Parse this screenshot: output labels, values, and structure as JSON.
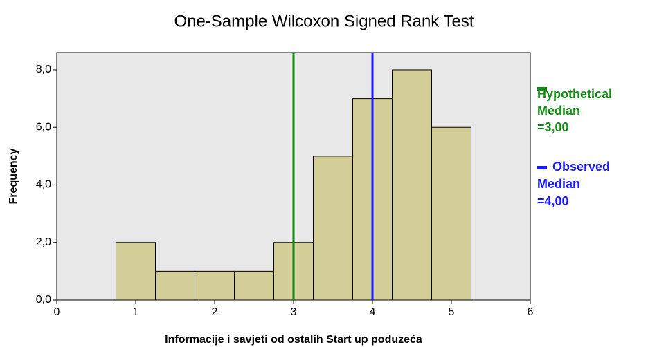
{
  "chart_data": {
    "type": "histogram",
    "title": "One-Sample Wilcoxon Signed Rank Test",
    "xlabel": "Informacije i savjeti od ostalih Start up poduzeća",
    "ylabel": "Frequency",
    "bins": [
      0.75,
      1.25,
      1.75,
      2.25,
      2.75,
      3.25,
      3.75,
      4.25,
      4.75,
      5.25
    ],
    "counts": [
      2,
      1,
      1,
      1,
      2,
      5,
      7,
      8,
      6
    ],
    "color": "#d3ce97",
    "xlim": [
      0,
      6
    ],
    "xticks": [
      0,
      1,
      2,
      3,
      4,
      5,
      6
    ],
    "ylim": [
      0,
      8.6
    ],
    "yticks": [
      {
        "value": 0,
        "label": "0,0"
      },
      {
        "value": 2,
        "label": "2,0"
      },
      {
        "value": 4,
        "label": "4,0"
      },
      {
        "value": 6,
        "label": "6,0"
      },
      {
        "value": 8,
        "label": "8,0"
      }
    ],
    "reference_lines": [
      {
        "value": 3,
        "color": "#138a13",
        "label": [
          "Hypothetical",
          "Median",
          "=3,00"
        ]
      },
      {
        "value": 4,
        "color": "#1a1aff",
        "label": [
          "Observed",
          "Median",
          "=4,00"
        ]
      }
    ]
  }
}
